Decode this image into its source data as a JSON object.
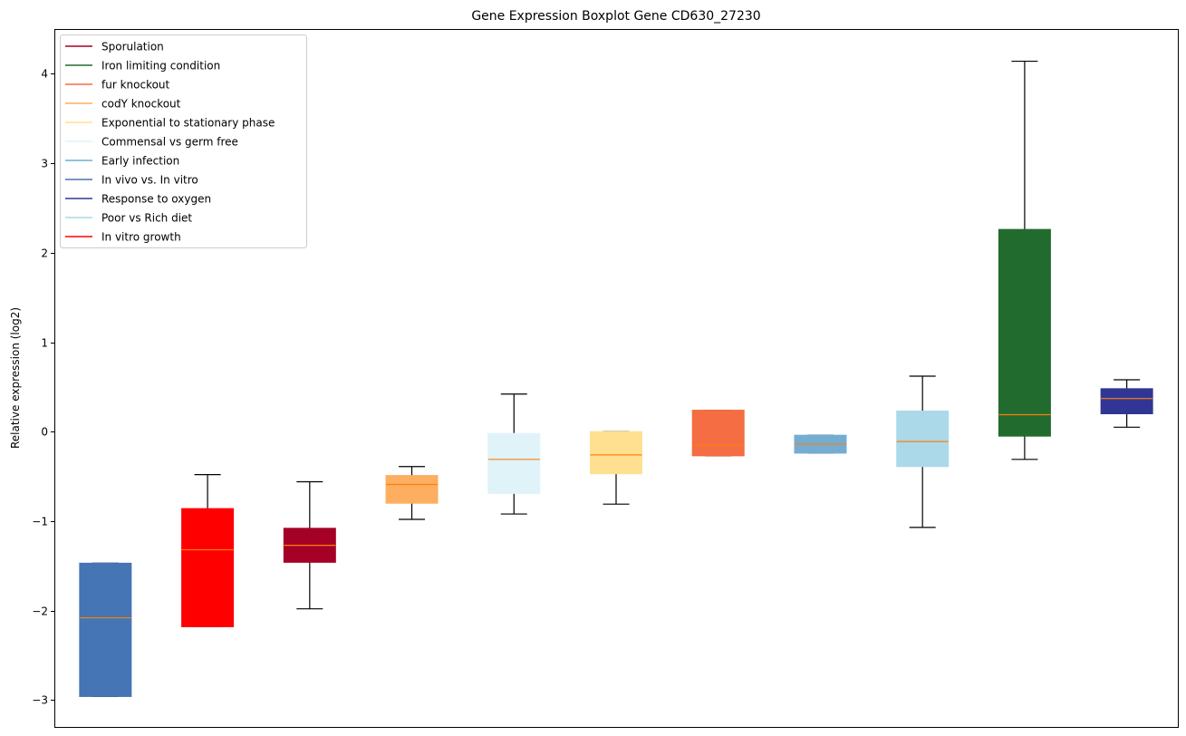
{
  "chart_data": {
    "type": "boxplot",
    "title": "Gene Expression Boxplot Gene CD630_27230",
    "xlabel": "",
    "ylabel": "Relative expression (log2)",
    "ylim": [
      -3.3,
      4.5
    ],
    "xlim": [
      0.5,
      11.5
    ],
    "yticks": [
      -3,
      -2,
      -1,
      0,
      1,
      2,
      3,
      4
    ],
    "ytick_labels": [
      "−3",
      "−2",
      "−1",
      "0",
      "1",
      "2",
      "3",
      "4"
    ],
    "grid": false,
    "legend_position": "top-left",
    "median_color": "#ff7f0e",
    "legend": [
      {
        "label": "Sporulation",
        "color": "#a50026"
      },
      {
        "label": "Iron limiting condition",
        "color": "#226b2e"
      },
      {
        "label": "fur knockout",
        "color": "#f46d43"
      },
      {
        "label": "codY knockout",
        "color": "#fdae61"
      },
      {
        "label": "Exponential to stationary phase",
        "color": "#fee090"
      },
      {
        "label": "Commensal vs germ free",
        "color": "#e0f3f8"
      },
      {
        "label": "Early infection",
        "color": "#74add1"
      },
      {
        "label": "In vivo vs. In vitro",
        "color": "#4575b4"
      },
      {
        "label": "Response to oxygen",
        "color": "#313695"
      },
      {
        "label": "Poor vs Rich diet",
        "color": "#abd9e9"
      },
      {
        "label": "In vitro growth",
        "color": "#ff0000"
      }
    ],
    "boxes": [
      {
        "group": "In vivo vs. In vitro",
        "color": "#4575b4",
        "whislo": -2.96,
        "q1": -2.96,
        "median": -2.08,
        "q3": -1.47,
        "whishi": -1.47
      },
      {
        "group": "In vitro growth",
        "color": "#ff0000",
        "whislo": -2.18,
        "q1": -2.18,
        "median": -1.32,
        "q3": -0.86,
        "whishi": -0.48
      },
      {
        "group": "Sporulation",
        "color": "#a50026",
        "whislo": -1.98,
        "q1": -1.46,
        "median": -1.27,
        "q3": -1.08,
        "whishi": -0.56
      },
      {
        "group": "codY knockout",
        "color": "#fdae61",
        "whislo": -0.98,
        "q1": -0.8,
        "median": -0.59,
        "q3": -0.49,
        "whishi": -0.39
      },
      {
        "group": "Commensal vs germ free",
        "color": "#e0f3f8",
        "whislo": -0.92,
        "q1": -0.69,
        "median": -0.31,
        "q3": -0.02,
        "whishi": 0.42
      },
      {
        "group": "Exponential to stationary phase",
        "color": "#fee090",
        "whislo": -0.81,
        "q1": -0.47,
        "median": -0.26,
        "q3": 0.0,
        "whishi": 0.0
      },
      {
        "group": "fur knockout",
        "color": "#f46d43",
        "whislo": -0.27,
        "q1": -0.27,
        "median": -0.15,
        "q3": 0.24,
        "whishi": 0.24
      },
      {
        "group": "Early infection",
        "color": "#74add1",
        "whislo": -0.24,
        "q1": -0.24,
        "median": -0.14,
        "q3": -0.04,
        "whishi": -0.04
      },
      {
        "group": "Poor vs Rich diet",
        "color": "#abd9e9",
        "whislo": -1.07,
        "q1": -0.39,
        "median": -0.11,
        "q3": 0.23,
        "whishi": 0.62
      },
      {
        "group": "Iron limiting condition",
        "color": "#226b2e",
        "whislo": -0.31,
        "q1": -0.05,
        "median": 0.19,
        "q3": 2.26,
        "whishi": 4.14
      },
      {
        "group": "Response to oxygen",
        "color": "#313695",
        "whislo": 0.05,
        "q1": 0.2,
        "median": 0.37,
        "q3": 0.48,
        "whishi": 0.58
      }
    ]
  }
}
